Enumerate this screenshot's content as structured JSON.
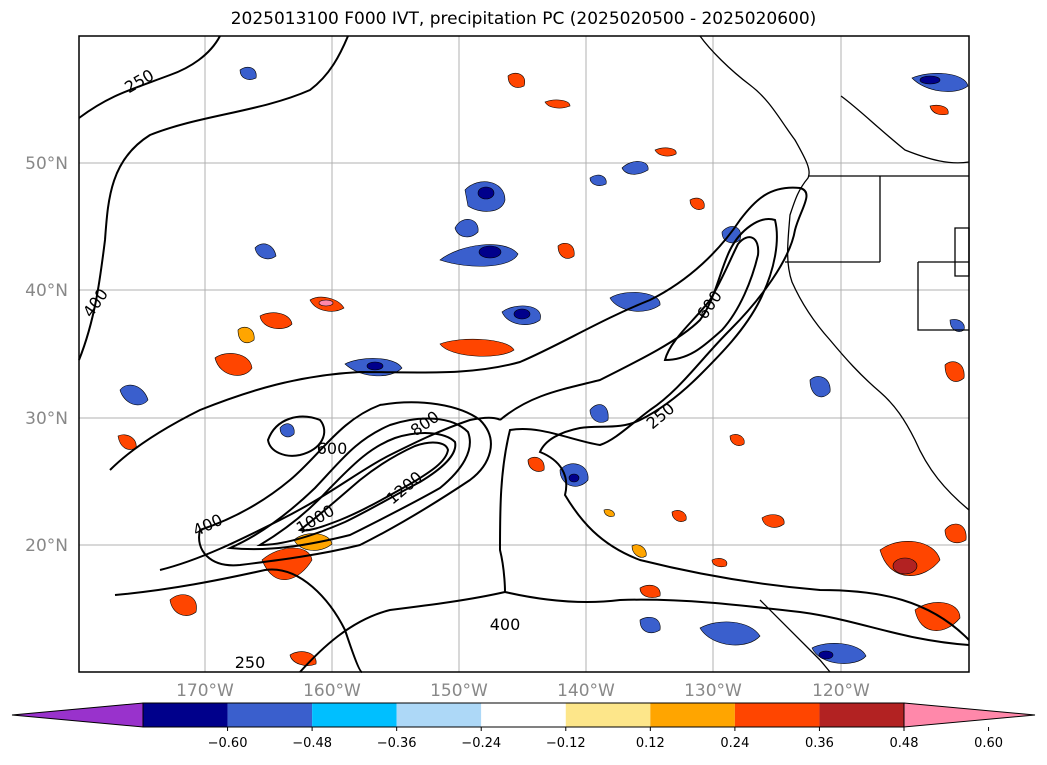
{
  "title": "2025013100 F000 IVT, precipitation PC (2025020500 - 2025020600)",
  "lat_labels": [
    "50°N",
    "40°N",
    "30°N",
    "20°N"
  ],
  "lon_labels": [
    "170°W",
    "160°W",
    "150°W",
    "140°W",
    "130°W",
    "120°W"
  ],
  "contour_labels": [
    "250",
    "400",
    "600",
    "800",
    "1000",
    "1200",
    "600",
    "250",
    "400",
    "250",
    "400"
  ],
  "colorbar": {
    "ticks": [
      "−0.60",
      "−0.48",
      "−0.36",
      "−0.24",
      "−0.12",
      "0.12",
      "0.24",
      "0.36",
      "0.48",
      "0.60"
    ],
    "colors": [
      "#9932cc",
      "#00008b",
      "#3a5fcd",
      "#00bfff",
      "#add8f7",
      "#ffffff",
      "#fde68a",
      "#ffa500",
      "#ff4500",
      "#b22222",
      "#ff88aa"
    ]
  }
}
